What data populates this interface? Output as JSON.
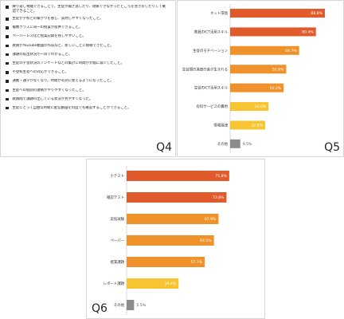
{
  "q4": {
    "label": "Q4",
    "items": [
      "繰り返し視聴できることで、生徒が聞き逃したり、理解できなかったところを巻き戻したりして確認できること。",
      "生徒が学校との繋がりを感じ、質問しやすくなったこと。",
      "複数クラスに同一の授業が提供できること。",
      "ペーパーレス化と授業記録を残しやすいこと。",
      "教員がYouTube動画の作成など、新しいことに挑戦できたこと。",
      "課題の提出状況が一目でわかること。",
      "生徒の学習状況のアンケートなどの集計に時間が大幅に減少したこと。",
      "不登校生徒への対応ができること。",
      "通勤・通学がなくなり、時間が有効に使えるようになったこと。",
      "生徒への個別の連絡がやりやすくなったこと。",
      "教員間で課題の出している状況が見やすくなった。",
      "生徒にとって自由な時間に配信動画を何度でも確認することができること。"
    ]
  },
  "chart_data": [
    {
      "id": "q5",
      "type": "bar",
      "orientation": "horizontal",
      "label": "Q5",
      "categories": [
        "ネット環境",
        "教員のICT活用スキル",
        "生徒のモチベーション",
        "生徒間の進度の差が生まれる",
        "生徒のICT活用スキル",
        "有料サービスの費用",
        "情報漏洩",
        "その他"
      ],
      "values": [
        88.8,
        80.4,
        64.7,
        52.6,
        50.2,
        36.0,
        32.8,
        9.5
      ],
      "value_labels": [
        "88.8%",
        "80.4%",
        "64.7%",
        "52.6%",
        "50.2%",
        "36.0%",
        "32.8%",
        "9.5%"
      ],
      "colors": [
        "#e05a2b",
        "#e05a2b",
        "#f0922b",
        "#f0922b",
        "#f0922b",
        "#f7c531",
        "#f7c531",
        "#8c8c8c"
      ],
      "xlim": [
        0,
        100
      ]
    },
    {
      "id": "q6",
      "type": "bar",
      "orientation": "horizontal",
      "label": "Q6",
      "categories": [
        "小テスト",
        "確認テスト",
        "実技試験",
        "ペーパー",
        "授業課題",
        "レポート課題",
        "その他"
      ],
      "values": [
        75.8,
        73.8,
        67.9,
        64.5,
        57.7,
        38.4,
        5.5
      ],
      "value_labels": [
        "75.8%",
        "73.8%",
        "67.9%",
        "64.5%",
        "57.7%",
        "38.4%",
        "5.5%"
      ],
      "colors": [
        "#e05a2b",
        "#e05a2b",
        "#f0922b",
        "#f0922b",
        "#f0922b",
        "#f7c531",
        "#8c8c8c"
      ],
      "xlim": [
        0,
        100
      ]
    }
  ]
}
